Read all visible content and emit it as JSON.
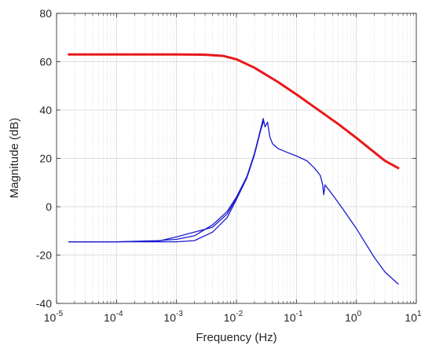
{
  "chart_data": {
    "type": "line",
    "title": "",
    "xlabel": "Frequency (Hz)",
    "ylabel": "Magnitude (dB)",
    "xscale": "log",
    "xlim": [
      1e-05,
      10
    ],
    "ylim": [
      -40,
      80
    ],
    "grid": true,
    "x_tick_labels": [
      {
        "base": "10",
        "exp": "-5",
        "value": 1e-05
      },
      {
        "base": "10",
        "exp": "-4",
        "value": 0.0001
      },
      {
        "base": "10",
        "exp": "-3",
        "value": 0.001
      },
      {
        "base": "10",
        "exp": "-2",
        "value": 0.01
      },
      {
        "base": "10",
        "exp": "-1",
        "value": 0.1
      },
      {
        "base": "10",
        "exp": "0",
        "value": 1
      },
      {
        "base": "10",
        "exp": "1",
        "value": 10
      }
    ],
    "y_tick_labels": [
      "-40",
      "-20",
      "0",
      "20",
      "40",
      "60",
      "80"
    ],
    "y_tick_values": [
      -40,
      -20,
      0,
      20,
      40,
      60,
      80
    ],
    "series": [
      {
        "color": "#e8191b",
        "x": [
          1.6e-05,
          0.0001,
          0.001,
          0.003,
          0.006,
          0.01,
          0.02,
          0.05,
          0.1,
          0.2,
          0.5,
          1,
          2,
          3,
          5
        ],
        "y": [
          63,
          63,
          63,
          62.9,
          62.4,
          61,
          57.5,
          51.5,
          46.5,
          41.2,
          34.2,
          28.5,
          22.5,
          19,
          16
        ]
      },
      {
        "color": "#1a1ad0",
        "x": [
          1.6e-05,
          0.0001,
          0.0005,
          0.001,
          0.002,
          0.004,
          0.007,
          0.01,
          0.015,
          0.02,
          0.025,
          0.028,
          0.03,
          0.033,
          0.036,
          0.04,
          0.05,
          0.07,
          0.1,
          0.15,
          0.2,
          0.25,
          0.275,
          0.285,
          0.3,
          0.4,
          0.6,
          1,
          2,
          3,
          5
        ],
        "y": [
          -14.5,
          -14.5,
          -14,
          -13.5,
          -12,
          -7.5,
          -2,
          4,
          12.5,
          22,
          31.5,
          36.5,
          33,
          35,
          29,
          26,
          24,
          22.5,
          21,
          19,
          16,
          13,
          9,
          5,
          9,
          5,
          -1,
          -9,
          -21,
          -27,
          -32
        ]
      },
      {
        "color": "#1a1ad0",
        "x": [
          1.6e-05,
          0.0001,
          0.0005,
          0.001,
          0.002,
          0.004,
          0.007,
          0.01,
          0.015,
          0.02,
          0.025,
          0.028
        ],
        "y": [
          -14.5,
          -14.5,
          -14.5,
          -14.5,
          -14,
          -10.5,
          -4.5,
          3,
          12,
          21.5,
          31,
          35
        ]
      },
      {
        "color": "#1a1ad0",
        "x": [
          1.6e-05,
          0.0001,
          0.0005,
          0.001,
          0.002,
          0.004,
          0.007,
          0.01,
          0.015,
          0.02,
          0.025,
          0.028
        ],
        "y": [
          -14.5,
          -14.5,
          -14.2,
          -12.5,
          -10.5,
          -8.5,
          -3,
          3.5,
          12.5,
          22,
          31.5,
          35.5
        ]
      }
    ]
  }
}
